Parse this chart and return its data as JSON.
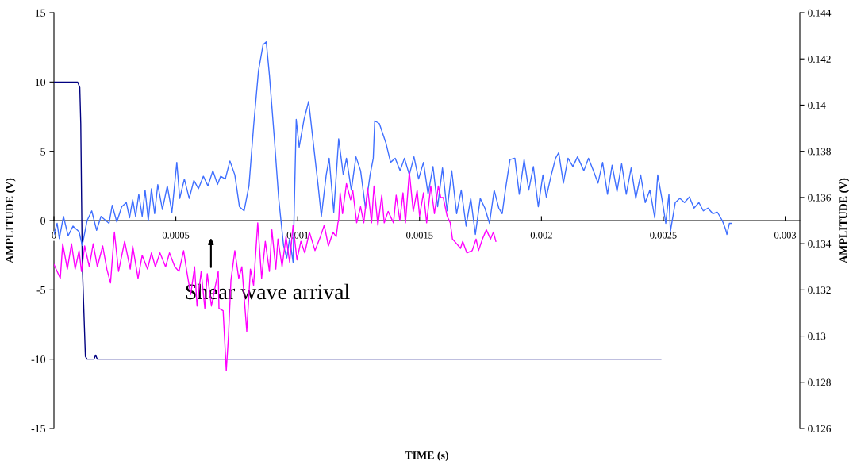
{
  "chart_data": {
    "type": "line",
    "xlabel": "TIME (s)",
    "ylabel": "AMPLITUDE (V)",
    "y2label": "AMPLITUDE (V)",
    "xlim": [
      0,
      0.00306
    ],
    "xticks": [
      0,
      0.0005,
      0.001,
      0.0015,
      0.002,
      0.0025,
      0.003
    ],
    "ylim": [
      -15,
      15
    ],
    "yticks": [
      -15,
      -10,
      -5,
      0,
      5,
      10,
      15
    ],
    "y2lim": [
      0.126,
      0.144
    ],
    "y2ticks": [
      0.126,
      0.128,
      0.13,
      0.132,
      0.134,
      0.136,
      0.138,
      0.14,
      0.142,
      0.144
    ],
    "grid": false,
    "marker": "none",
    "line_style": "solid",
    "annotations": [
      "Shear wave arrival"
    ],
    "series": [
      {
        "color": "#000080",
        "x": [
          0,
          9.7e-05,
          0.000106,
          0.00011,
          0.000116,
          0.000129,
          0.000136,
          0.000164,
          0.000171,
          0.000178,
          0.00249
        ],
        "values": [
          10,
          10,
          9.6,
          7.0,
          -3,
          -9.8,
          -10,
          -10,
          -9.7,
          -10,
          -10
        ]
      },
      {
        "color": "#3f6fff",
        "x": [
          0,
          1.3e-05,
          2.2e-05,
          3.9e-05,
          5.8e-05,
          7.8e-05,
          0.000103,
          0.000116,
          0.000136,
          0.000155,
          0.000175,
          0.000193,
          0.000226,
          0.000239,
          0.000258,
          0.000278,
          0.000297,
          0.00031,
          0.000323,
          0.000335,
          0.000348,
          0.000362,
          0.000374,
          0.000387,
          0.0004,
          0.000413,
          0.000426,
          0.000445,
          0.000465,
          0.000484,
          0.000504,
          0.000516,
          0.000535,
          0.000555,
          0.000574,
          0.000593,
          0.000613,
          0.000632,
          0.000652,
          0.000671,
          0.000684,
          0.000703,
          0.000722,
          0.000742,
          0.000761,
          0.00078,
          0.0008,
          0.000819,
          0.000839,
          0.000858,
          0.000871,
          0.000884,
          0.000903,
          0.000922,
          0.000942,
          0.000955,
          0.000967,
          0.000981,
          0.000994,
          0.001006,
          0.001026,
          0.001045,
          0.001064,
          0.001084,
          0.001097,
          0.001117,
          0.001129,
          0.001148,
          0.001168,
          0.001187,
          0.0012,
          0.00122,
          0.001239,
          0.001258,
          0.001278,
          0.001297,
          0.00131,
          0.001316,
          0.001335,
          0.001362,
          0.001381,
          0.0014,
          0.00142,
          0.001438,
          0.001458,
          0.001477,
          0.001496,
          0.001516,
          0.001535,
          0.001555,
          0.001574,
          0.001594,
          0.001613,
          0.001632,
          0.001652,
          0.001671,
          0.001691,
          0.00171,
          0.001729,
          0.001749,
          0.001768,
          0.001787,
          0.001806,
          0.001825,
          0.001839,
          0.001852,
          0.001871,
          0.001891,
          0.001909,
          0.001929,
          0.001948,
          0.001967,
          0.001987,
          0.002006,
          0.00202,
          0.002039,
          0.002058,
          0.002071,
          0.00209,
          0.002109,
          0.002129,
          0.002148,
          0.002174,
          0.002193,
          0.002213,
          0.002232,
          0.002251,
          0.002271,
          0.00229,
          0.00231,
          0.002329,
          0.002348,
          0.002368,
          0.002387,
          0.002407,
          0.002426,
          0.002445,
          0.002465,
          0.002477,
          0.002497,
          0.00251,
          0.002523,
          0.002529,
          0.002549,
          0.002568,
          0.002587,
          0.002607,
          0.002626,
          0.002646,
          0.002664,
          0.002683,
          0.002703,
          0.002722,
          0.002742,
          0.002755,
          0.002761,
          0.002771,
          0.002781
        ],
        "values": [
          -1.0,
          -0.2,
          -1.3,
          0.3,
          -1.1,
          -0.4,
          -0.8,
          -1.8,
          0,
          0.7,
          -0.7,
          0.3,
          -0.2,
          1.1,
          -0.1,
          1.0,
          1.3,
          0.2,
          1.5,
          0.3,
          1.9,
          0.3,
          2.2,
          0,
          2.3,
          0.5,
          2.6,
          0.8,
          2.5,
          0.6,
          4.2,
          1.6,
          3.0,
          1.6,
          2.9,
          2.3,
          3.2,
          2.5,
          3.6,
          2.6,
          3.2,
          3.0,
          4.3,
          3.3,
          1.0,
          0.7,
          2.5,
          6.8,
          10.8,
          12.7,
          12.9,
          10.5,
          6.2,
          1.6,
          -1.8,
          -2.7,
          -1.3,
          -3.0,
          7.3,
          5.3,
          7.3,
          8.6,
          5.6,
          2.5,
          0.3,
          3.3,
          4.5,
          0.6,
          5.9,
          3.3,
          4.5,
          2.2,
          4.6,
          3.6,
          0.9,
          3.3,
          4.5,
          7.2,
          7.0,
          5.6,
          4.2,
          4.5,
          3.6,
          4.5,
          3.3,
          4.6,
          3.0,
          4.2,
          1.9,
          3.9,
          1.0,
          3.8,
          0.7,
          3.6,
          0.5,
          2.2,
          -0.4,
          1.6,
          -1.0,
          1.6,
          0.9,
          -0.2,
          2.2,
          0.9,
          0.5,
          2.2,
          4.4,
          4.5,
          1.9,
          4.4,
          2.2,
          3.9,
          1.0,
          3.3,
          1.7,
          3.2,
          4.5,
          4.9,
          2.7,
          4.5,
          3.9,
          4.6,
          3.6,
          4.5,
          3.6,
          2.7,
          4.2,
          1.9,
          4.0,
          2.1,
          4.1,
          1.9,
          3.8,
          1.6,
          3.3,
          1.3,
          2.2,
          0.2,
          3.3,
          1.3,
          -0.2,
          1.9,
          -0.8,
          1.3,
          1.6,
          1.3,
          1.7,
          0.9,
          1.3,
          0.7,
          0.9,
          0.5,
          0.6,
          0,
          -0.6,
          -1.0,
          -0.2,
          -0.2
        ]
      },
      {
        "color": "#ff00ff",
        "axis": "y2",
        "x": [
          0,
          2.6e-05,
          3.6e-05,
          5.5e-05,
          7.2e-05,
          8.7e-05,
          0.000103,
          0.000113,
          0.000126,
          0.000145,
          0.000161,
          0.000178,
          0.0002,
          0.000217,
          0.000232,
          0.000248,
          0.000265,
          0.00029,
          0.000313,
          0.000323,
          0.000345,
          0.000362,
          0.000384,
          0.0004,
          0.000416,
          0.000435,
          0.000458,
          0.000474,
          0.000496,
          0.000513,
          0.000532,
          0.000545,
          0.000561,
          0.000577,
          0.000587,
          0.000604,
          0.000619,
          0.000629,
          0.000646,
          0.000674,
          0.000677,
          0.000694,
          0.000707,
          0.000716,
          0.000726,
          0.000742,
          0.000758,
          0.000771,
          0.000791,
          0.000806,
          0.000819,
          0.000836,
          0.000852,
          0.000867,
          0.000884,
          0.000894,
          0.00091,
          0.000919,
          0.000936,
          0.000952,
          0.000967,
          0.000981,
          0.000997,
          0.001013,
          0.001029,
          0.001048,
          0.001071,
          0.001093,
          0.001109,
          0.001126,
          0.001145,
          0.001158,
          0.001165,
          0.001168,
          0.001174,
          0.001184,
          0.0012,
          0.001217,
          0.001226,
          0.001242,
          0.001258,
          0.001271,
          0.001287,
          0.001303,
          0.001313,
          0.001329,
          0.001345,
          0.001355,
          0.001371,
          0.001393,
          0.001404,
          0.001419,
          0.001432,
          0.001442,
          0.001458,
          0.001474,
          0.00149,
          0.0015,
          0.001516,
          0.001529,
          0.001546,
          0.001561,
          0.001577,
          0.001587,
          0.001597,
          0.001613,
          0.001626,
          0.001635,
          0.001652,
          0.001668,
          0.001677,
          0.001694,
          0.001716,
          0.001732,
          0.001742,
          0.001758,
          0.001774,
          0.001791,
          0.001803,
          0.001813
        ],
        "values": [
          0.1331,
          0.1325,
          0.134,
          0.1329,
          0.134,
          0.1329,
          0.1337,
          0.1328,
          0.1339,
          0.133,
          0.134,
          0.133,
          0.1339,
          0.1329,
          0.1323,
          0.1345,
          0.1328,
          0.1341,
          0.1329,
          0.1339,
          0.1325,
          0.1335,
          0.1329,
          0.1336,
          0.133,
          0.1336,
          0.133,
          0.1336,
          0.133,
          0.1328,
          0.1337,
          0.1328,
          0.1318,
          0.133,
          0.1313,
          0.1328,
          0.1312,
          0.1327,
          0.1313,
          0.1328,
          0.1312,
          0.1311,
          0.1285,
          0.13,
          0.1324,
          0.1337,
          0.1325,
          0.133,
          0.1302,
          0.1329,
          0.1322,
          0.1349,
          0.1325,
          0.1341,
          0.1328,
          0.1346,
          0.1329,
          0.1342,
          0.133,
          0.1343,
          0.1332,
          0.1348,
          0.1333,
          0.1341,
          0.1336,
          0.1345,
          0.1337,
          0.1343,
          0.1348,
          0.1339,
          0.1345,
          0.1343,
          0.1349,
          0.135,
          0.1362,
          0.1353,
          0.1366,
          0.1359,
          0.1363,
          0.1349,
          0.1356,
          0.1349,
          0.1364,
          0.1349,
          0.1365,
          0.1348,
          0.1361,
          0.1349,
          0.1354,
          0.1349,
          0.1361,
          0.135,
          0.1362,
          0.1349,
          0.1371,
          0.1354,
          0.1363,
          0.1352,
          0.1362,
          0.1349,
          0.1365,
          0.1353,
          0.1365,
          0.136,
          0.136,
          0.1352,
          0.1349,
          0.1342,
          0.134,
          0.1338,
          0.1341,
          0.1336,
          0.1337,
          0.1342,
          0.1337,
          0.1342,
          0.1346,
          0.1342,
          0.1345,
          0.1341
        ]
      }
    ]
  }
}
